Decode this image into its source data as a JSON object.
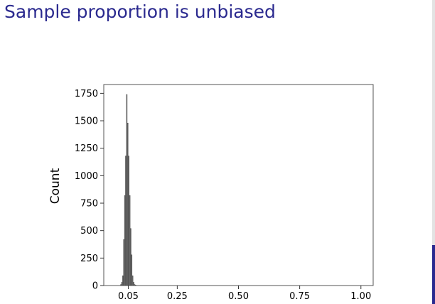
{
  "slide": {
    "title": "Sample proportion is unbiased",
    "accent_color": "#2b2a8f"
  },
  "chart_data": {
    "type": "bar",
    "title": "",
    "xlabel": "",
    "ylabel": "Count",
    "xlim": [
      -0.05,
      1.05
    ],
    "ylim": [
      0,
      1830
    ],
    "x_ticks": [
      0.05,
      0.25,
      0.5,
      0.75,
      1.0
    ],
    "x_tick_labels": [
      "0.05",
      "0.25",
      "0.50",
      "0.75",
      "1.00"
    ],
    "y_ticks": [
      0,
      250,
      500,
      750,
      1000,
      1250,
      1500,
      1750
    ],
    "y_tick_labels": [
      "0",
      "250",
      "500",
      "750",
      "1000",
      "1250",
      "1500",
      "1750"
    ],
    "bar_color": "#6b6b6b",
    "grid": false,
    "categories": [
      0.02,
      0.024,
      0.028,
      0.032,
      0.036,
      0.04,
      0.044,
      0.048,
      0.052,
      0.056,
      0.06,
      0.064,
      0.068,
      0.072,
      0.076,
      0.08
    ],
    "values": [
      10,
      30,
      90,
      420,
      820,
      1180,
      1740,
      1480,
      1180,
      820,
      520,
      280,
      90,
      30,
      10,
      5
    ]
  }
}
